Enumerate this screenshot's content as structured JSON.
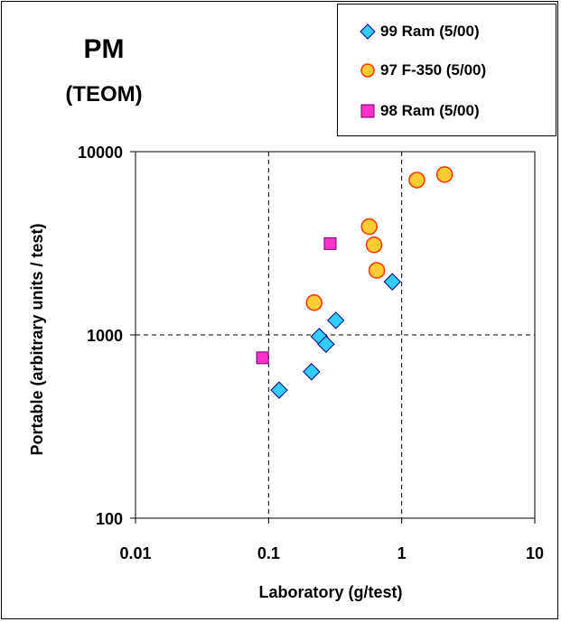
{
  "title": "PM",
  "subtitle": "(TEOM)",
  "legend": [
    {
      "label": "99 Ram (5/00)",
      "marker": "diamond-icon",
      "color": "#33CCFF"
    },
    {
      "label": "97 F-350 (5/00)",
      "marker": "circle-icon",
      "color": "#FFCC33"
    },
    {
      "label": "98 Ram (5/00)",
      "marker": "square-icon",
      "color": "#FF33CC"
    }
  ],
  "chart_data": {
    "type": "scatter",
    "title": "PM",
    "subtitle": "(TEOM)",
    "xlabel": "Laboratory (g/test)",
    "ylabel": "Portable (arbitrary units / test)",
    "xscale": "log",
    "yscale": "log",
    "xlim": [
      0.01,
      10
    ],
    "ylim": [
      100,
      10000
    ],
    "xticks": [
      "0.01",
      "0.1",
      "1",
      "10"
    ],
    "yticks": [
      "100",
      "1000",
      "10000"
    ],
    "grid": "dashed major gridlines",
    "legend_position": "top-right",
    "series": [
      {
        "name": "99 Ram (5/00)",
        "marker": "diamond",
        "color": "#33CCFF",
        "points": [
          [
            0.12,
            500
          ],
          [
            0.21,
            630
          ],
          [
            0.24,
            980
          ],
          [
            0.27,
            890
          ],
          [
            0.32,
            1200
          ],
          [
            0.85,
            1950
          ]
        ]
      },
      {
        "name": "97 F-350 (5/00)",
        "marker": "circle",
        "color": "#FFCC33",
        "edge_color": "#FF3300",
        "points": [
          [
            0.22,
            1500
          ],
          [
            0.57,
            3900
          ],
          [
            0.62,
            3100
          ],
          [
            0.65,
            2250
          ],
          [
            1.3,
            7000
          ],
          [
            2.1,
            7500
          ]
        ]
      },
      {
        "name": "98 Ram (5/00)",
        "marker": "square",
        "color": "#FF33CC",
        "points": [
          [
            0.09,
            750
          ],
          [
            0.29,
            3150
          ]
        ]
      }
    ]
  }
}
